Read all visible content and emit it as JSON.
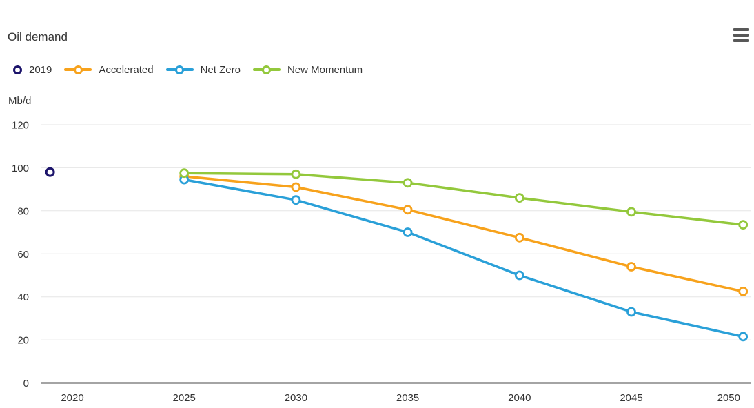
{
  "header": {
    "title": "Oil demand"
  },
  "menu": {
    "icon": "hamburger-icon"
  },
  "legend": {
    "position": "top-left",
    "items": [
      {
        "label": "2019",
        "color": "#1c146b",
        "marker": "point"
      },
      {
        "label": "Accelerated",
        "color": "#f7a21c",
        "marker": "line"
      },
      {
        "label": "Net Zero",
        "color": "#2aa0d8",
        "marker": "line"
      },
      {
        "label": "New Momentum",
        "color": "#93c83c",
        "marker": "line"
      }
    ]
  },
  "chart_data": {
    "type": "line",
    "title": "Oil demand",
    "y_unit_label": "Mb/d",
    "ylabel": "Mb/d",
    "xlabel": "",
    "ylim": [
      0,
      120
    ],
    "xlim": [
      2018.6,
      2050.4
    ],
    "x_ticks": [
      2020,
      2025,
      2030,
      2035,
      2040,
      2045,
      2050
    ],
    "y_ticks": [
      0,
      20,
      40,
      60,
      80,
      100,
      120
    ],
    "grid": "horizontal gridlines on",
    "legend_position": "top-left",
    "marker_style": "open-circle",
    "point_series": {
      "name": "2019",
      "color": "#1c146b",
      "x": [
        2019
      ],
      "values": [
        98
      ]
    },
    "series": [
      {
        "name": "Accelerated",
        "color": "#f7a21c",
        "x": [
          2025,
          2030,
          2035,
          2040,
          2045,
          2050
        ],
        "values": [
          96,
          91,
          80.5,
          67.5,
          54,
          42.5
        ]
      },
      {
        "name": "Net Zero",
        "color": "#2aa0d8",
        "x": [
          2025,
          2030,
          2035,
          2040,
          2045,
          2050
        ],
        "values": [
          94.5,
          85,
          70,
          50,
          33,
          21.5
        ]
      },
      {
        "name": "New Momentum",
        "color": "#93c83c",
        "x": [
          2025,
          2030,
          2035,
          2040,
          2045,
          2050
        ],
        "values": [
          97.5,
          97,
          93,
          86,
          79.5,
          73.5
        ]
      }
    ],
    "colors": {
      "navy": "#1c146b",
      "orange": "#f7a21c",
      "blue": "#2aa0d8",
      "green": "#93c83c",
      "gridline": "#e6e6e6",
      "axis_line": "#4a4a4a",
      "text": "#333333"
    }
  }
}
